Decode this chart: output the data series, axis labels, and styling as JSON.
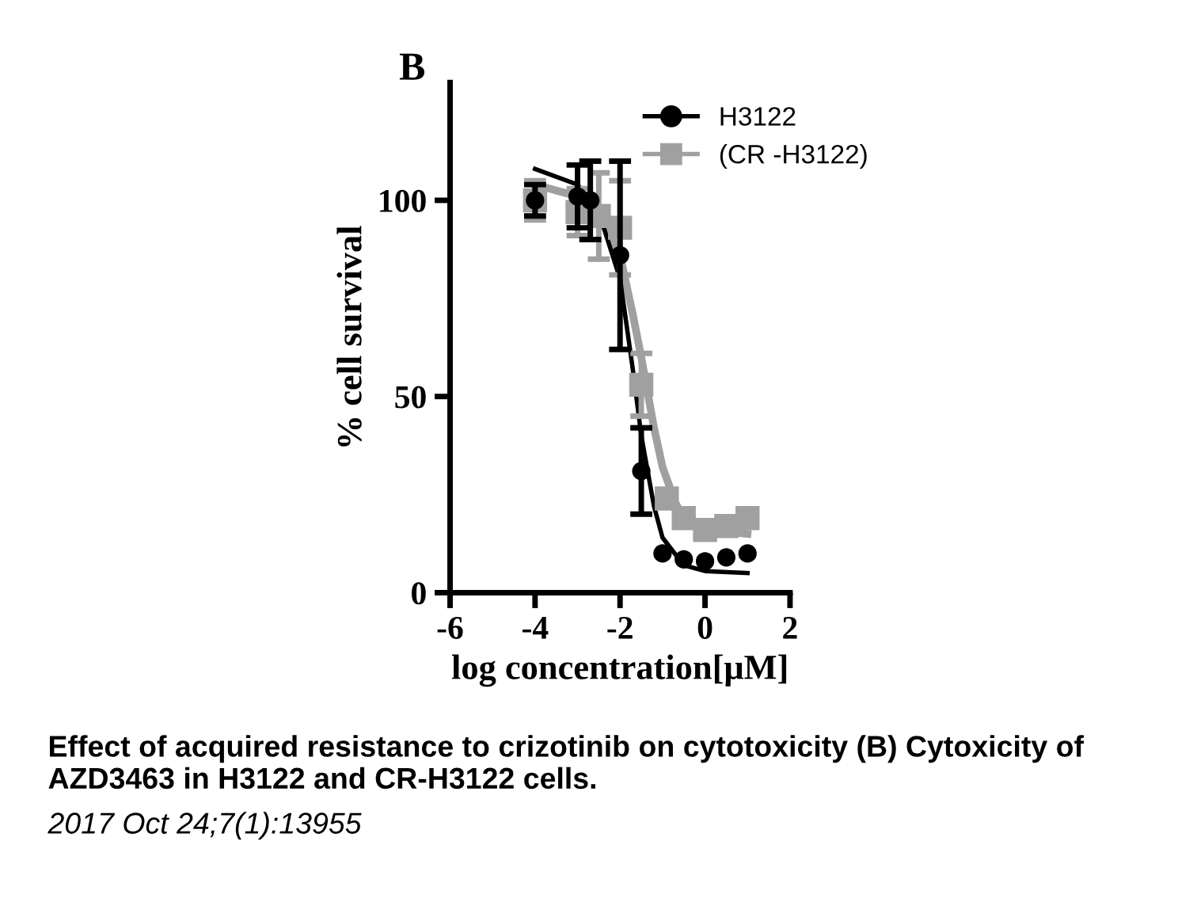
{
  "chart_data": {
    "type": "scatter",
    "title": "B",
    "xlabel": "log concentration[μM]",
    "ylabel": "% cell survival",
    "xlim": [
      -6,
      2
    ],
    "xticks": [
      -6,
      -4,
      -2,
      0,
      2
    ],
    "ylim": [
      0,
      130
    ],
    "yticks": [
      0,
      50,
      100
    ],
    "grid": false,
    "legend": "top right",
    "series": [
      {
        "name": "H3122",
        "marker": "circle",
        "color": "#000000",
        "x": [
          -4,
          -3,
          -2.7,
          -2,
          -1.5,
          -1,
          -0.5,
          0,
          0.5,
          1
        ],
        "values": [
          100,
          101,
          100,
          86,
          31,
          10,
          8.5,
          8,
          9,
          10
        ],
        "errors": [
          4,
          8,
          10,
          24,
          11,
          null,
          null,
          null,
          null,
          null
        ]
      },
      {
        "name": "(CR -H3122)",
        "marker": "square",
        "color": "#a0a0a0",
        "x": [
          -4,
          -3,
          -2.5,
          -2,
          -1.5,
          -0.9,
          -0.5,
          0,
          0.5,
          1
        ],
        "values": [
          100,
          97,
          96,
          93,
          53,
          24,
          19,
          16,
          17,
          19
        ],
        "errors": [
          5,
          6,
          11,
          12,
          8,
          null,
          null,
          null,
          null,
          null
        ]
      },
      {
        "type": "line",
        "marker": "none",
        "color": "#000000",
        "x": [
          -4,
          -3,
          -2.5,
          -2,
          -1.7,
          -1.5,
          -1.2,
          -1,
          -0.5,
          0,
          1
        ],
        "values": [
          108,
          104,
          97,
          80,
          57,
          40,
          22,
          14,
          7,
          5.5,
          5
        ]
      },
      {
        "type": "line",
        "marker": "none",
        "color": "#a0a0a0",
        "x": [
          -4,
          -3,
          -2.5,
          -2,
          -1.7,
          -1.5,
          -1.2,
          -1,
          -0.7,
          -0.5,
          0,
          1
        ],
        "values": [
          104,
          101,
          97,
          86,
          71,
          60,
          42,
          32,
          23,
          19,
          16,
          15
        ]
      }
    ],
    "annotations": [
      "Effect of acquired resistance to crizotinib on cytotoxicity (B) Cytoxicity of AZD3463 in H3122 and CR-H3122 cells.",
      "2017 Oct 24;7(1):13955"
    ]
  }
}
